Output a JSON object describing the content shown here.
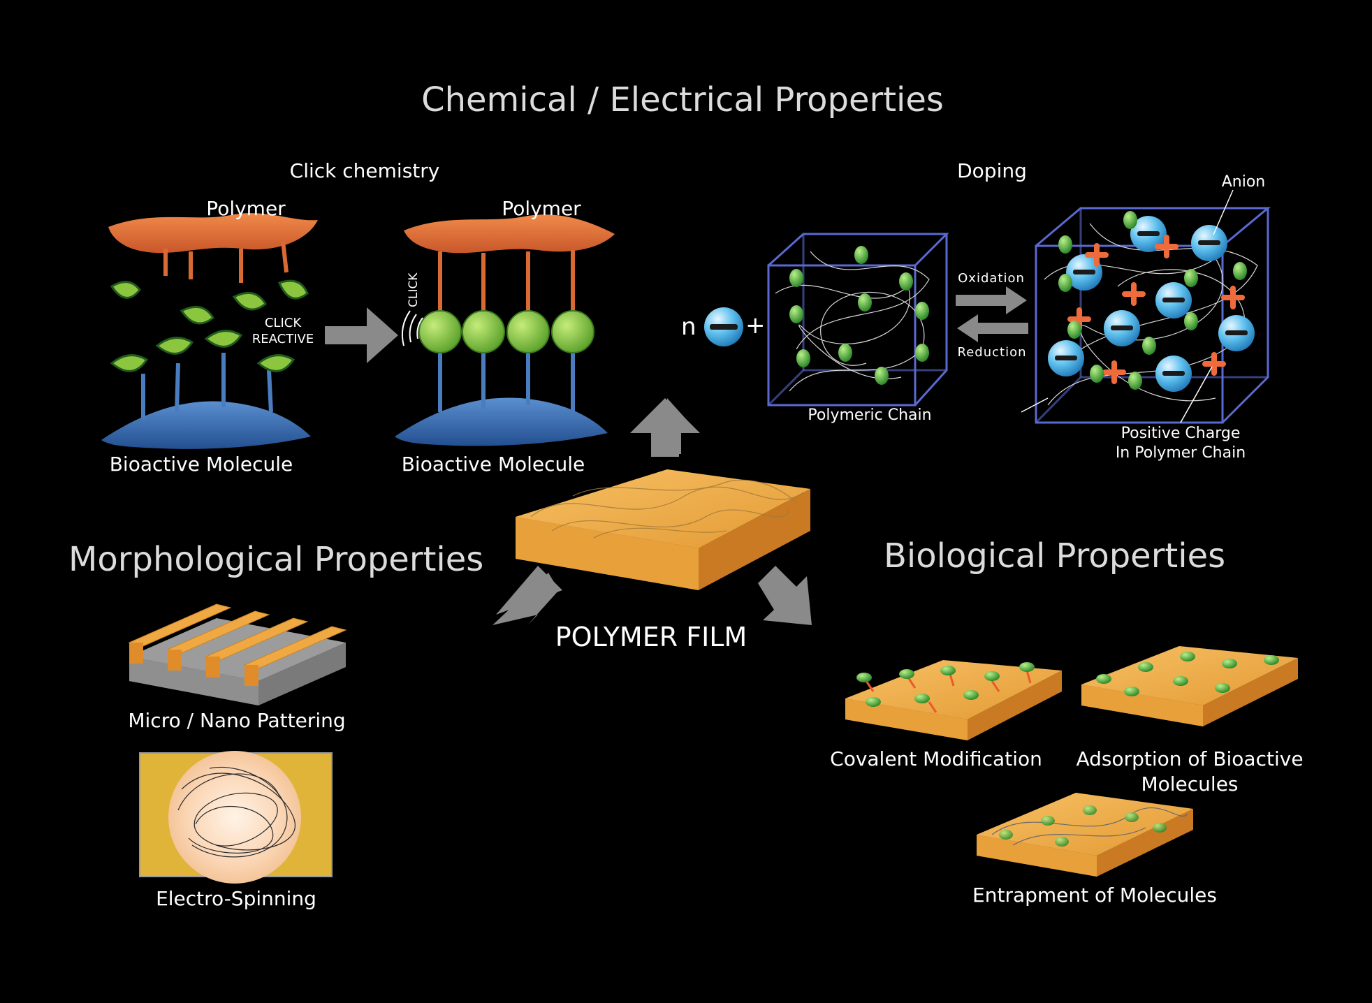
{
  "titles": {
    "chemical": "Chemical / Electrical Properties",
    "morphological": "Morphological Properties",
    "biological": "Biological Properties",
    "film": "POLYMER FILM"
  },
  "click": {
    "section": "Click chemistry",
    "polymer_left": "Polymer",
    "polymer_right": "Polymer",
    "bio_left": "Bioactive Molecule",
    "bio_right": "Bioactive Molecule",
    "reactive_line1": "CLICK",
    "reactive_line2": "REACTIVE",
    "click_tag": "CLICK"
  },
  "doping": {
    "section": "Doping",
    "n": "n",
    "plus": "+",
    "oxidation": "Oxidation",
    "reduction": "Reduction",
    "chain": "Polymeric Chain",
    "anion": "Anion",
    "pos_line1": "Positive Charge",
    "pos_line2": "In Polymer Chain"
  },
  "morph": {
    "pattern": "Micro / Nano Pattering",
    "spin": "Electro-Spinning"
  },
  "bio": {
    "covalent": "Covalent Modification",
    "adsorption_line1": "Adsorption of Bioactive",
    "adsorption_line2": "Molecules",
    "entrapment": "Entrapment of Molecules"
  },
  "colors": {
    "background": "#000000",
    "polymer": "#e2733a",
    "bioactive": "#3b6fb0",
    "leaf": "#8cc63f",
    "cube_edge": "#5a6ad0",
    "anion": "#4fb6e8",
    "positive": "#f06b3c",
    "film": "#f0a842",
    "arrow": "#8a8a8a"
  }
}
